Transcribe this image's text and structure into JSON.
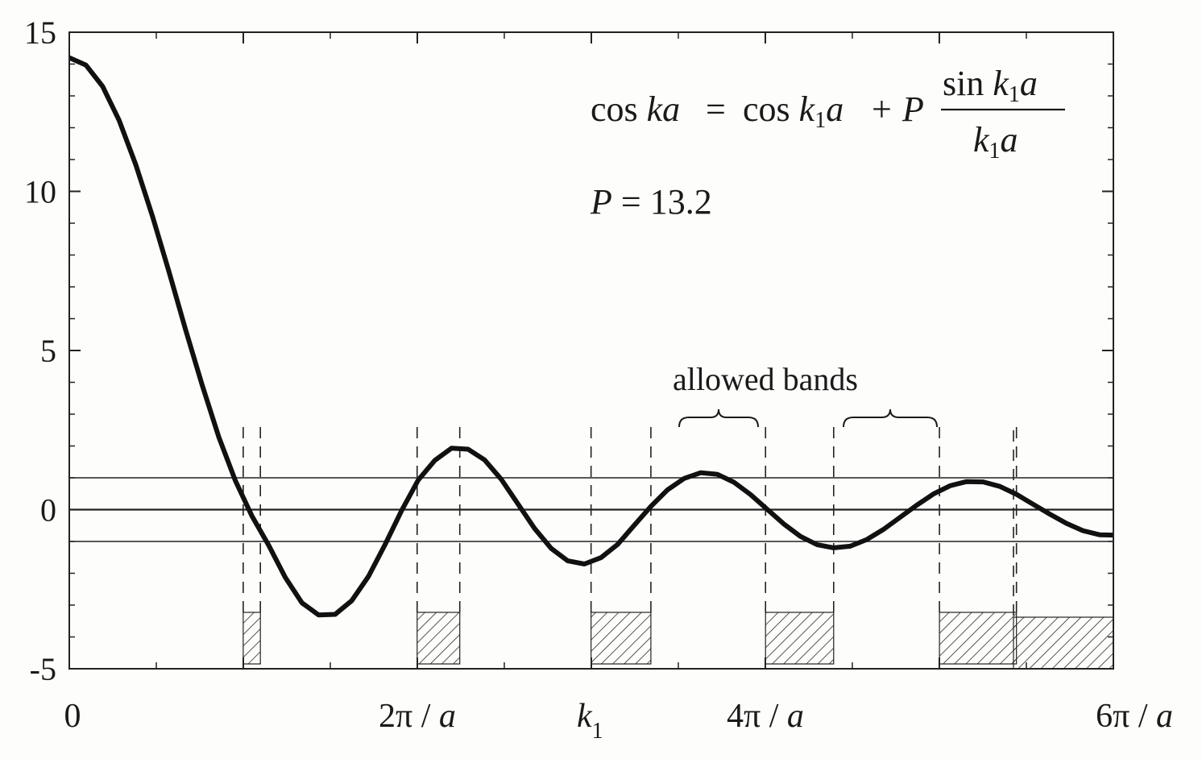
{
  "chart_data": {
    "type": "line",
    "title": "",
    "xlabel": "",
    "ylabel": "",
    "xlim": [
      0,
      18.85
    ],
    "ylim": [
      -5,
      15
    ],
    "x_unit_note": "x in units of 1/a",
    "y_ticks": [
      "15",
      "10",
      "5",
      "0",
      "-5"
    ],
    "y_tick_values": [
      15,
      10,
      5,
      0,
      -5
    ],
    "x_tick_labels": [
      {
        "text": "0",
        "value": 0
      },
      {
        "text": "2π / a",
        "value": 6.283
      },
      {
        "text": "k",
        "sub": "1",
        "value": 9.4
      },
      {
        "text": "4π / a",
        "value": 12.566
      },
      {
        "text": "6π / a",
        "value": 18.85
      }
    ],
    "reference_lines": [
      1,
      0,
      -1
    ],
    "series": [
      {
        "x": [
          0.0,
          0.3,
          0.6,
          0.9,
          1.2,
          1.5,
          1.8,
          2.1,
          2.4,
          2.7,
          3.0,
          3.3,
          3.6,
          3.9,
          4.2,
          4.5,
          4.8,
          5.1,
          5.4,
          5.7,
          6.0,
          6.3,
          6.6,
          6.9,
          7.2,
          7.5,
          7.8,
          8.1,
          8.4,
          8.7,
          9.0,
          9.3,
          9.6,
          9.9,
          10.2,
          10.5,
          10.8,
          11.1,
          11.4,
          11.7,
          12.0,
          12.3,
          12.6,
          12.9,
          13.2,
          13.5,
          13.8,
          14.1,
          14.4,
          14.7,
          15.0,
          15.3,
          15.6,
          15.9,
          16.2,
          16.5,
          16.8,
          17.1,
          17.4,
          17.7,
          18.0,
          18.3,
          18.6,
          18.85
        ],
        "y": [
          14.2,
          13.97,
          13.3,
          12.23,
          10.84,
          9.23,
          7.47,
          5.65,
          3.91,
          2.28,
          0.9,
          -0.21,
          -1.12,
          -2.13,
          -2.93,
          -3.31,
          -3.29,
          -2.86,
          -2.1,
          -1.1,
          -0.03,
          0.93,
          1.55,
          1.93,
          1.9,
          1.56,
          0.95,
          0.18,
          -0.59,
          -1.22,
          -1.61,
          -1.71,
          -1.51,
          -1.09,
          -0.49,
          0.1,
          0.62,
          0.98,
          1.16,
          1.11,
          0.86,
          0.47,
          0.01,
          -0.45,
          -0.84,
          -1.1,
          -1.2,
          -1.15,
          -0.94,
          -0.62,
          -0.24,
          0.14,
          0.49,
          0.75,
          0.88,
          0.87,
          0.73,
          0.48,
          0.17,
          -0.14,
          -0.43,
          -0.66,
          -0.79,
          -0.8
        ]
      }
    ],
    "allowed_bands": [
      [
        3.14,
        3.45
      ],
      [
        6.28,
        7.05
      ],
      [
        9.42,
        10.5
      ],
      [
        12.57,
        13.8
      ],
      [
        15.71,
        17.1
      ],
      [
        18.85,
        18.85
      ]
    ],
    "annotations": {
      "bands_label": "allowed bands",
      "equation": {
        "lhs": "cos ka",
        "eq": "=",
        "term1": "cos k₁a",
        "plus": "+",
        "coef": "P",
        "frac_num": "sin k₁a",
        "frac_den": "k₁a"
      },
      "param": "P = 13.2"
    },
    "grid": false,
    "legend": "none"
  },
  "colors": {
    "curve": "#111111",
    "axes": "#222222",
    "hatch": "#2a2a2a",
    "background": "#fdfdfb"
  }
}
